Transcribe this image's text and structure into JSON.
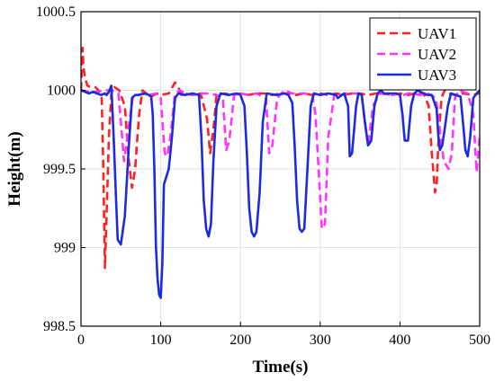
{
  "chart_data": {
    "type": "line",
    "xlabel": "Time(s)",
    "ylabel": "Height(m)",
    "xlim": [
      0,
      500
    ],
    "ylim": [
      998.5,
      1000.5
    ],
    "xticks": [
      "0",
      "100",
      "200",
      "300",
      "400",
      "500"
    ],
    "yticks": [
      "998.5",
      "999",
      "999.5",
      "1000",
      "1000.5"
    ],
    "grid": true,
    "legend": "top-right",
    "series": [
      {
        "name": "UAV1",
        "color": "#ff2020",
        "style": "dashed",
        "x": [
          0,
          2,
          3,
          5,
          8,
          12,
          18,
          22,
          26,
          28,
          30,
          32,
          35,
          38,
          42,
          48,
          55,
          60,
          64,
          68,
          70,
          73,
          77,
          82,
          88,
          95,
          100,
          110,
          118,
          122,
          126,
          130,
          140,
          150,
          158,
          162,
          166,
          170,
          180,
          190,
          200,
          210,
          220,
          230,
          240,
          250,
          260,
          270,
          280,
          290,
          300,
          310,
          320,
          330,
          340,
          350,
          360,
          370,
          380,
          390,
          400,
          410,
          420,
          430,
          436,
          440,
          444,
          446,
          448,
          452,
          456,
          460,
          470,
          480,
          490,
          500
        ],
        "values": [
          1000.0,
          1000.27,
          1000.15,
          1000.08,
          1000.03,
          1000.02,
          1000.02,
          1000.0,
          999.95,
          999.5,
          998.87,
          999.2,
          999.7,
          999.98,
          1000.02,
          1000.0,
          999.9,
          999.55,
          999.38,
          999.5,
          999.65,
          999.85,
          1000.0,
          999.98,
          999.96,
          999.98,
          999.97,
          999.98,
          1000.05,
          1000.02,
          999.97,
          999.98,
          999.97,
          999.98,
          999.82,
          999.6,
          999.75,
          999.97,
          999.98,
          999.97,
          999.98,
          999.97,
          999.98,
          999.98,
          999.97,
          999.98,
          999.98,
          999.97,
          999.98,
          999.97,
          999.98,
          999.97,
          999.98,
          999.97,
          999.98,
          999.98,
          999.97,
          999.98,
          999.98,
          999.97,
          999.98,
          999.97,
          999.98,
          999.98,
          999.9,
          999.6,
          999.35,
          999.4,
          999.65,
          999.95,
          1000.0,
          999.98,
          999.97,
          999.98,
          999.97,
          999.98
        ]
      },
      {
        "name": "UAV2",
        "color": "#ff33ff",
        "style": "dashed",
        "x": [
          0,
          10,
          20,
          30,
          38,
          44,
          47,
          50,
          54,
          58,
          65,
          72,
          78,
          85,
          95,
          100,
          105,
          108,
          112,
          118,
          124,
          130,
          140,
          150,
          160,
          170,
          178,
          182,
          186,
          192,
          200,
          210,
          220,
          232,
          236,
          240,
          246,
          255,
          265,
          280,
          290,
          294,
          298,
          302,
          306,
          310,
          318,
          325,
          333,
          345,
          352,
          356,
          360,
          366,
          375,
          390,
          400,
          405,
          410,
          416,
          425,
          435,
          445,
          455,
          461,
          465,
          469,
          474,
          485,
          492,
          496,
          500
        ],
        "values": [
          1000.0,
          999.99,
          999.99,
          1000.0,
          1000.0,
          999.99,
          999.98,
          999.8,
          999.55,
          999.7,
          999.96,
          999.97,
          999.98,
          999.97,
          999.98,
          999.95,
          999.6,
          999.58,
          999.7,
          999.98,
          1000.0,
          999.98,
          999.97,
          999.98,
          999.98,
          999.97,
          999.95,
          999.62,
          999.68,
          999.97,
          999.98,
          999.97,
          999.98,
          999.95,
          999.6,
          999.65,
          999.95,
          1000.0,
          999.98,
          999.98,
          999.97,
          999.85,
          999.5,
          999.12,
          999.15,
          999.7,
          999.98,
          999.97,
          999.98,
          999.98,
          999.97,
          999.8,
          999.65,
          999.9,
          999.98,
          999.97,
          999.98,
          999.97,
          999.98,
          999.98,
          999.97,
          999.98,
          999.95,
          999.55,
          999.5,
          999.6,
          999.95,
          1000.0,
          999.98,
          999.85,
          999.48,
          999.7
        ]
      },
      {
        "name": "UAV3",
        "color": "#1c2ae0",
        "style": "solid",
        "x": [
          0,
          10,
          15,
          20,
          25,
          30,
          32,
          35,
          38,
          41,
          44,
          46,
          50,
          55,
          60,
          64,
          68,
          72,
          80,
          85,
          88,
          90,
          92,
          94,
          96,
          98,
          100,
          102,
          104,
          107,
          110,
          114,
          118,
          122,
          130,
          140,
          148,
          151,
          154,
          157,
          160,
          163,
          166,
          170,
          175,
          185,
          195,
          200,
          205,
          208,
          211,
          214,
          217,
          220,
          224,
          228,
          233,
          245,
          255,
          260,
          265,
          268,
          271,
          274,
          277,
          280,
          284,
          288,
          292,
          300,
          310,
          320,
          322,
          330,
          335,
          337,
          340,
          345,
          348,
          352,
          356,
          360,
          364,
          368,
          372,
          376,
          380,
          395,
          400,
          403,
          406,
          410,
          414,
          418,
          422,
          430,
          435,
          440,
          446,
          448,
          450,
          453,
          456,
          460,
          464,
          470,
          476,
          479,
          482,
          485,
          488,
          492,
          496,
          500
        ],
        "values": [
          1000.0,
          999.98,
          999.99,
          999.98,
          999.97,
          999.98,
          999.97,
          999.99,
          1000.03,
          999.7,
          999.3,
          999.05,
          999.02,
          999.2,
          999.65,
          999.95,
          999.97,
          999.97,
          999.98,
          999.97,
          999.96,
          999.85,
          999.5,
          999.0,
          998.8,
          998.7,
          998.68,
          998.9,
          999.4,
          999.45,
          999.5,
          999.7,
          999.95,
          999.98,
          999.97,
          999.98,
          999.97,
          999.7,
          999.3,
          999.12,
          999.07,
          999.15,
          999.55,
          999.9,
          999.98,
          999.97,
          999.98,
          999.97,
          999.9,
          999.6,
          999.25,
          999.1,
          999.07,
          999.1,
          999.35,
          999.8,
          999.98,
          999.97,
          999.98,
          999.97,
          999.92,
          999.65,
          999.3,
          999.12,
          999.1,
          999.12,
          999.5,
          999.9,
          999.98,
          999.97,
          999.98,
          999.97,
          999.95,
          999.98,
          999.9,
          999.58,
          999.6,
          999.9,
          999.98,
          999.97,
          999.8,
          999.65,
          999.68,
          999.9,
          999.98,
          1000.0,
          999.98,
          999.98,
          999.97,
          999.85,
          999.68,
          999.68,
          999.9,
          999.98,
          1000.0,
          999.98,
          999.97,
          999.97,
          999.88,
          999.72,
          999.62,
          999.65,
          999.75,
          999.9,
          999.98,
          999.97,
          999.96,
          999.8,
          999.62,
          999.58,
          999.7,
          999.95,
          999.98,
          1000.0
        ]
      }
    ]
  }
}
